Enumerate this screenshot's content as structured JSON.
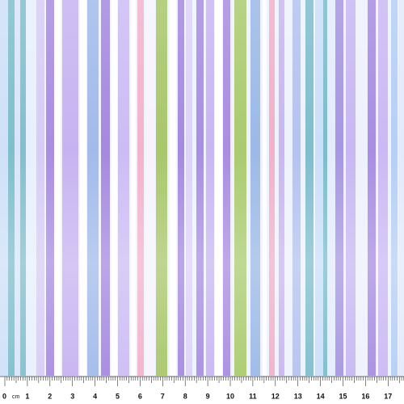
{
  "ruler": {
    "labels": [
      0,
      1,
      2,
      3,
      4,
      5,
      6,
      7,
      8,
      9,
      10,
      11,
      12,
      13,
      14,
      15,
      16,
      17
    ],
    "unit": "cm"
  }
}
